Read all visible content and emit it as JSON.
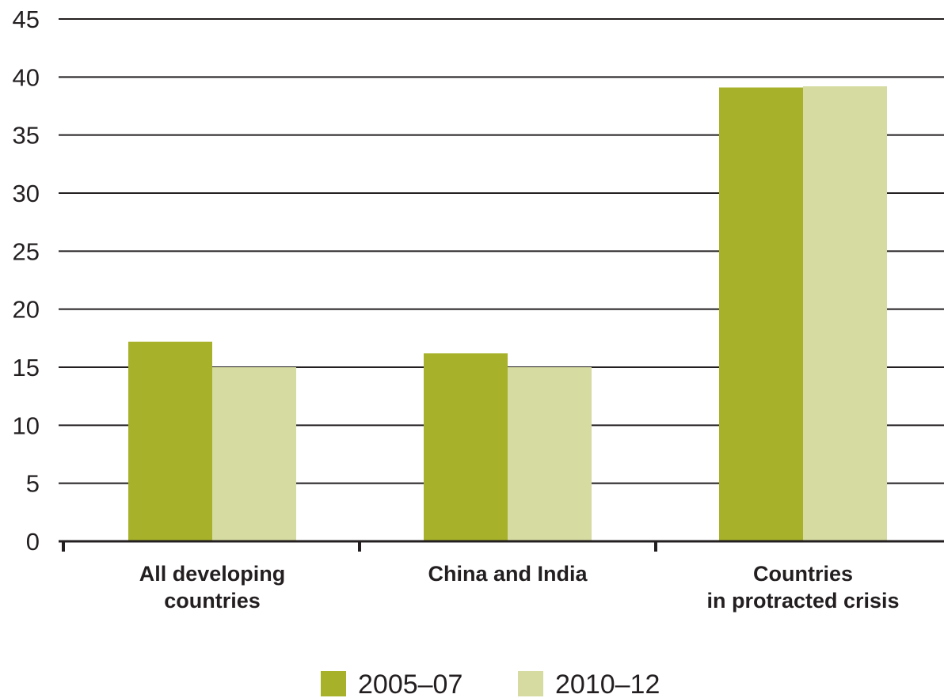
{
  "chart_data": {
    "type": "bar",
    "categories": [
      [
        "All developing",
        "countries"
      ],
      [
        "China and India"
      ],
      [
        "Countries",
        "in protracted crisis"
      ]
    ],
    "series": [
      {
        "name": "2005–07",
        "values": [
          17.2,
          16.2,
          39.1
        ],
        "color": "#a7b22a"
      },
      {
        "name": "2010–12",
        "values": [
          15.0,
          15.0,
          39.2
        ],
        "color": "#d6dba1"
      }
    ],
    "title": "",
    "xlabel": "",
    "ylabel": "",
    "ylim": [
      0,
      45
    ],
    "yticks": [
      0,
      5,
      10,
      15,
      20,
      25,
      30,
      35,
      40,
      45
    ],
    "grid": true,
    "legend_position": "bottom-center",
    "colors": {
      "grid": "#231f20",
      "text": "#231f20",
      "background": "#ffffff"
    }
  }
}
